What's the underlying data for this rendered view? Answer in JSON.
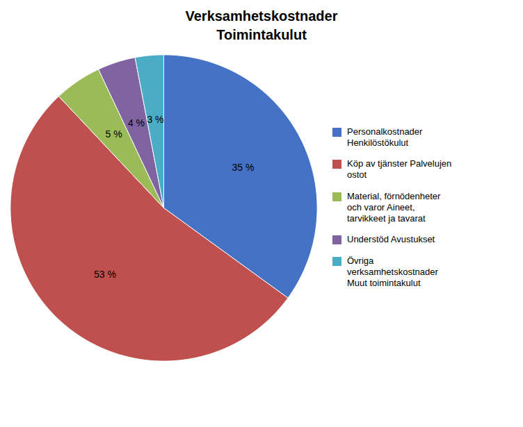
{
  "chart_data": {
    "type": "pie",
    "title": "Verksamhetskostnader\nToimintakulut",
    "categories": [
      "Personalkostnader\nHenkilöstökulut",
      "Köp av tjänster Palvelujen\nostot",
      "Material, förnödenheter\noch varor Aineet,\ntarvikkeet ja tavarat",
      "Understöd Avustukset",
      "Övriga\nverksamhetskostnader\nMuut toimintakulut"
    ],
    "values": [
      35,
      53,
      5,
      4,
      3
    ],
    "value_labels": [
      "35 %",
      "53 %",
      "5 %",
      "4 %",
      "3 %"
    ],
    "colors": [
      "#4472C4",
      "#C0504D",
      "#9BBB59",
      "#8064A2",
      "#4BACC6"
    ],
    "data_labels": true,
    "legend": "right"
  }
}
